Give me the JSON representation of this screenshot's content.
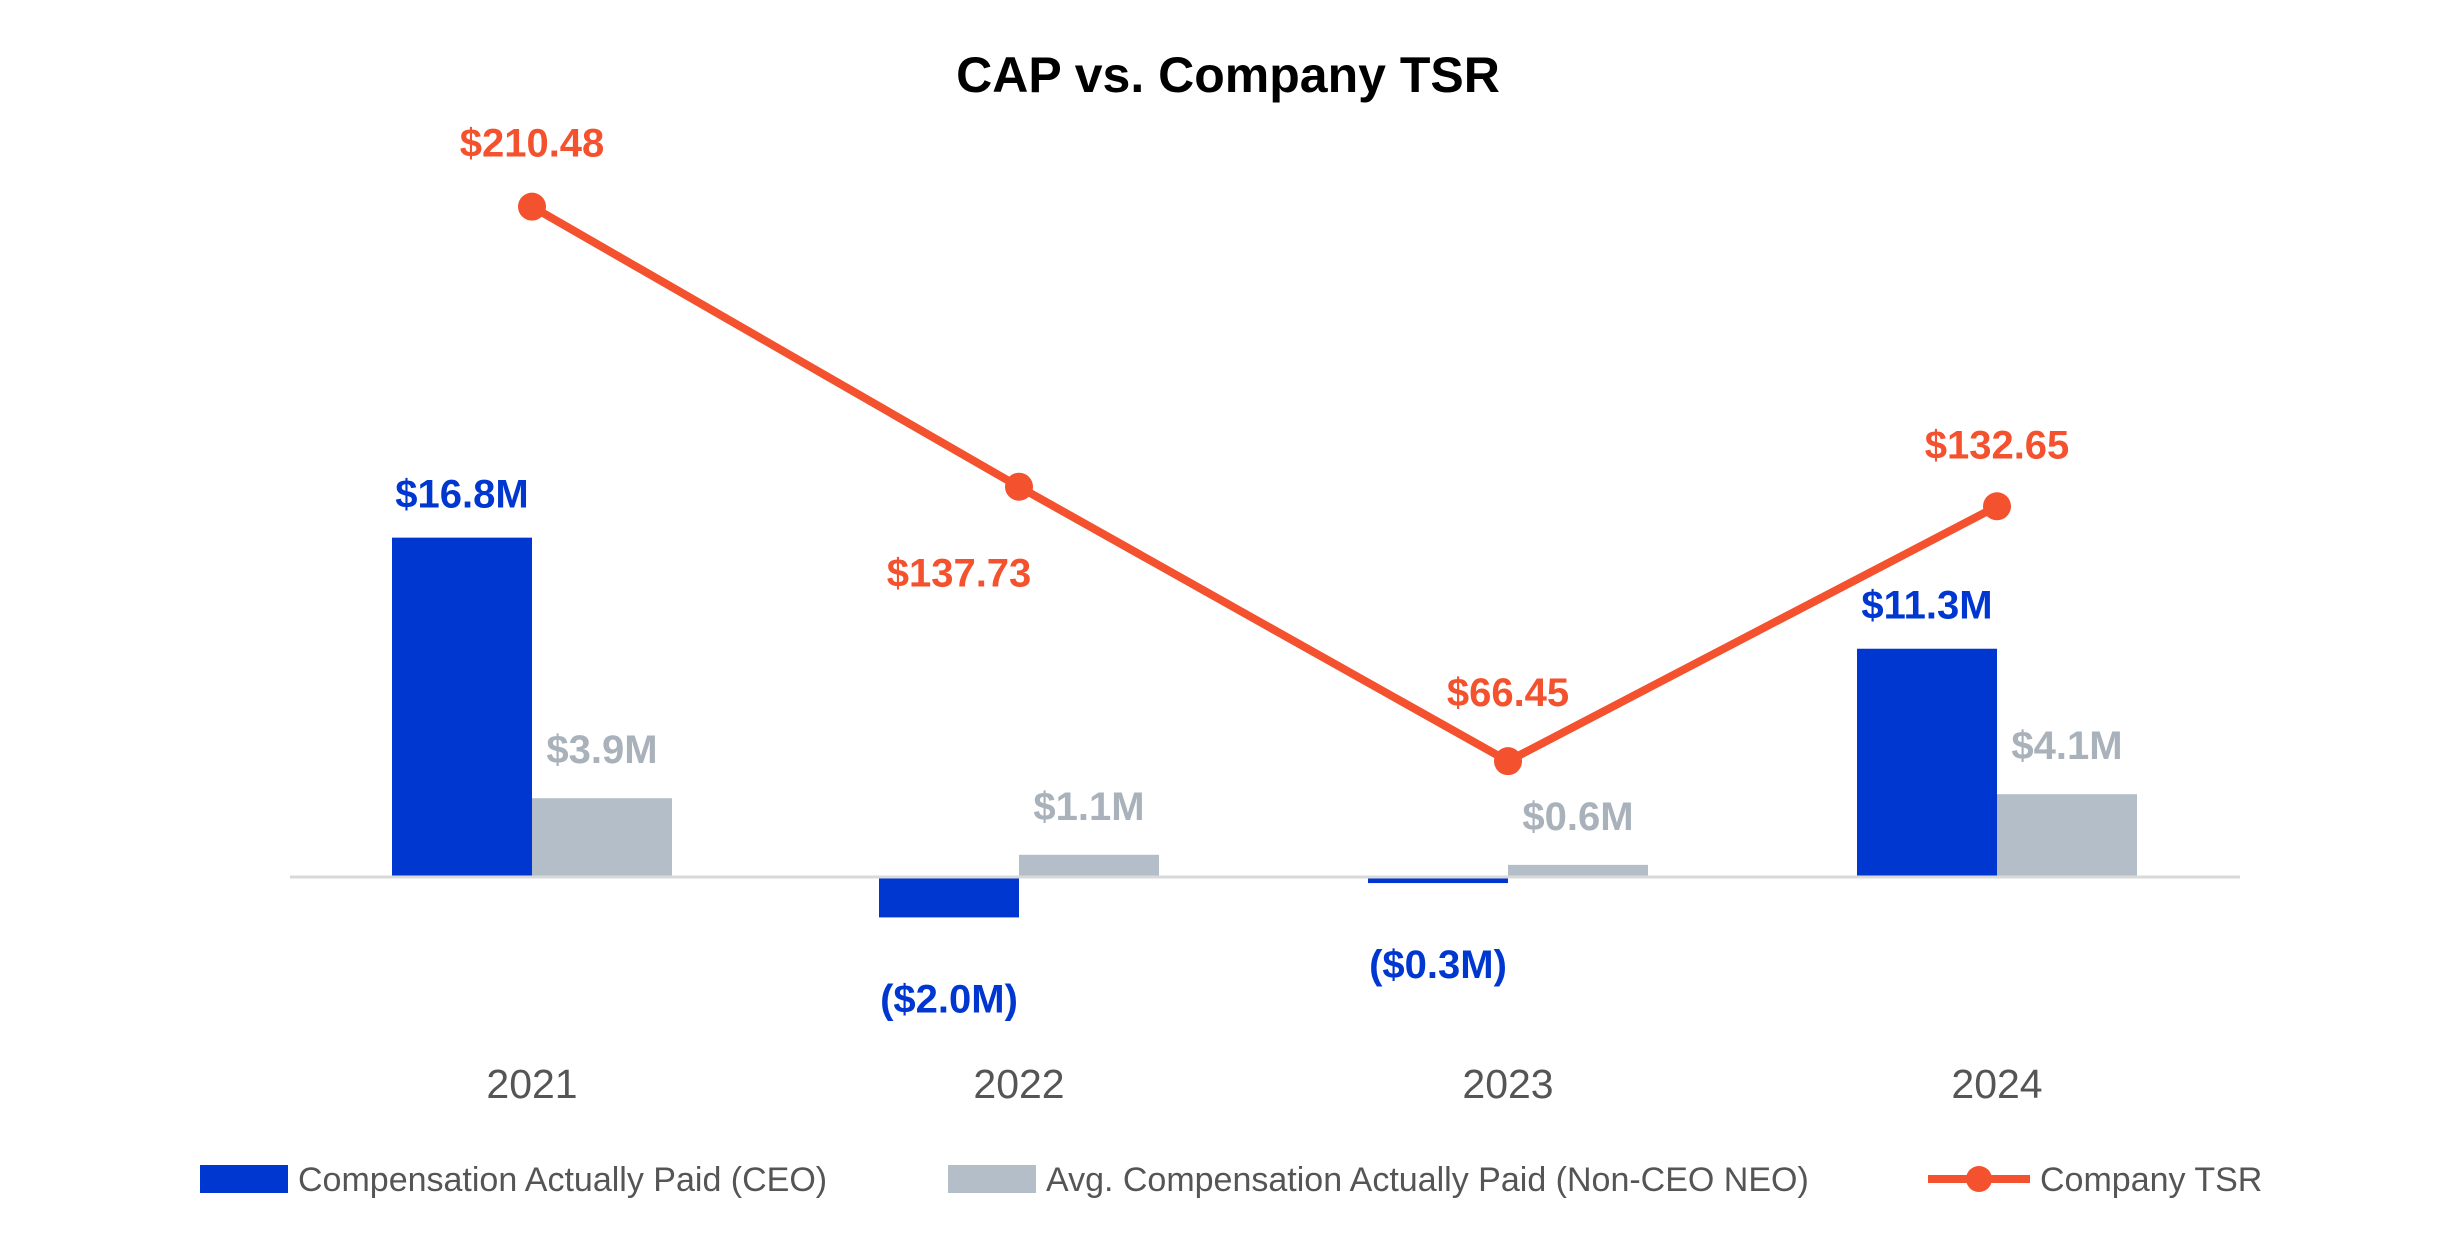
{
  "chart_data": {
    "type": "bar+line",
    "title": "CAP vs. Company TSR",
    "categories": [
      "2021",
      "2022",
      "2023",
      "2024"
    ],
    "series": [
      {
        "name": "Compensation Actually Paid (CEO)",
        "type": "bar",
        "color": "#0037D1",
        "values": [
          16.8,
          -2.0,
          -0.3,
          11.3
        ],
        "labels": [
          "$16.8M",
          "($2.0M)",
          "($0.3M)",
          "$11.3M"
        ]
      },
      {
        "name": "Avg. Compensation Actually Paid (Non-CEO NEO)",
        "type": "bar",
        "color": "#B4BEC8",
        "values": [
          3.9,
          1.1,
          0.6,
          4.1
        ],
        "labels": [
          "$3.9M",
          "$1.1M",
          "$0.6M",
          "$4.1M"
        ]
      },
      {
        "name": "Company TSR",
        "type": "line",
        "color": "#F4512E",
        "values": [
          210.48,
          137.73,
          66.45,
          132.65
        ],
        "labels": [
          "$210.48",
          "$137.73",
          "$66.45",
          "$132.65"
        ]
      }
    ],
    "legend": "bottom",
    "grid": false,
    "label_colors": {
      "ceo": "#0037D1",
      "neo": "#A9B1BA",
      "tsr": "#F4512E"
    }
  }
}
